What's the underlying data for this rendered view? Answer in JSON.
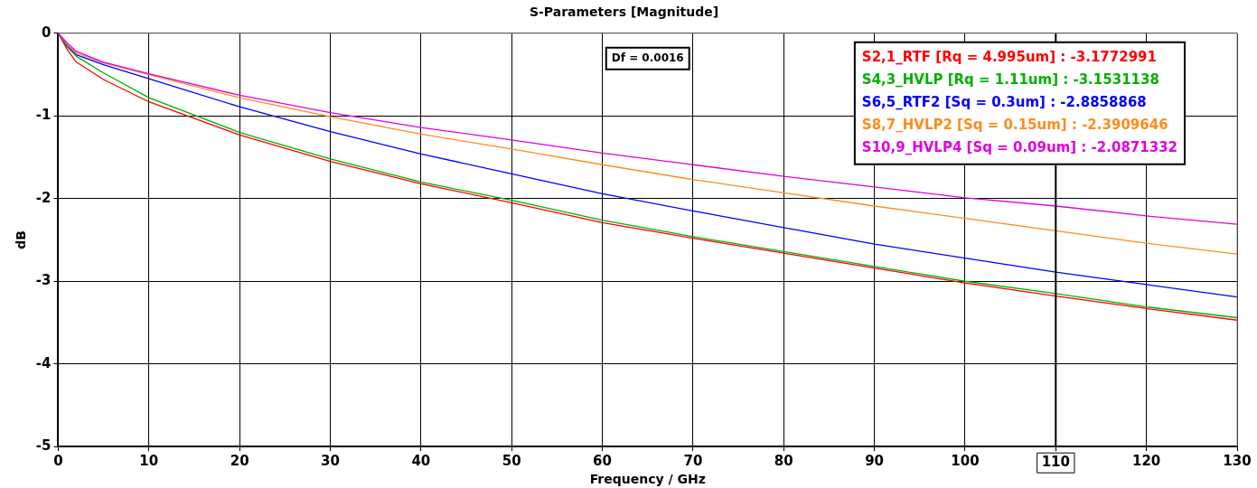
{
  "chart_data": {
    "type": "line",
    "title": "S-Parameters [Magnitude]",
    "xlabel": "Frequency / GHz",
    "ylabel": "dB",
    "xlim": [
      0,
      130
    ],
    "xticks": [
      0,
      10,
      20,
      30,
      40,
      50,
      60,
      70,
      80,
      90,
      100,
      110,
      120,
      130
    ],
    "ylim": [
      -5,
      0
    ],
    "yticks": [
      -5,
      -4,
      -3,
      -2,
      -1,
      0
    ],
    "grid": true,
    "legend": "top right",
    "marker": "none",
    "line_style": "solid",
    "x": [
      0,
      1,
      2,
      5,
      10,
      20,
      30,
      40,
      50,
      60,
      70,
      80,
      90,
      100,
      110,
      120,
      130
    ],
    "series": [
      {
        "name": "S2,1_RTF [Rq = 4.995um] : -3.1772991",
        "color": "#ff0000",
        "values": [
          0,
          -0.2,
          -0.35,
          -0.56,
          -0.83,
          -1.23,
          -1.55,
          -1.82,
          -2.05,
          -2.29,
          -2.48,
          -2.66,
          -2.84,
          -3.02,
          -3.18,
          -3.33,
          -3.47
        ]
      },
      {
        "name": "S4,3_HVLP [Rq = 1.11um] : -3.1531138",
        "color": "#00b000",
        "values": [
          0,
          -0.17,
          -0.28,
          -0.48,
          -0.78,
          -1.2,
          -1.52,
          -1.8,
          -2.02,
          -2.26,
          -2.46,
          -2.64,
          -2.82,
          -3.0,
          -3.15,
          -3.31,
          -3.44
        ]
      },
      {
        "name": "S6,5_RTF2 [Sq = 0.3um] : -2.8858868",
        "color": "#0000ff",
        "values": [
          0,
          -0.15,
          -0.26,
          -0.38,
          -0.55,
          -0.89,
          -1.19,
          -1.46,
          -1.7,
          -1.94,
          -2.15,
          -2.35,
          -2.55,
          -2.72,
          -2.89,
          -3.04,
          -3.19
        ]
      },
      {
        "name": "S8,7_HVLP2 [Sq = 0.15um] : -2.3909646",
        "color": "#ff8c1a",
        "values": [
          0,
          -0.14,
          -0.24,
          -0.36,
          -0.5,
          -0.78,
          -1.01,
          -1.22,
          -1.4,
          -1.59,
          -1.77,
          -1.93,
          -2.09,
          -2.24,
          -2.39,
          -2.54,
          -2.67
        ]
      },
      {
        "name": "S10,9_HVLP4 [Sq = 0.09um] : -2.0871332",
        "color": "#e000e0",
        "values": [
          0,
          -0.12,
          -0.22,
          -0.35,
          -0.49,
          -0.75,
          -0.96,
          -1.14,
          -1.29,
          -1.45,
          -1.59,
          -1.73,
          -1.86,
          -1.99,
          -2.09,
          -2.21,
          -2.31
        ]
      }
    ],
    "ref_lines": [
      {
        "axis": "x",
        "value": 110,
        "label": "110",
        "color": "#000000"
      }
    ],
    "annotations": [
      "Df = 0.0016"
    ]
  }
}
